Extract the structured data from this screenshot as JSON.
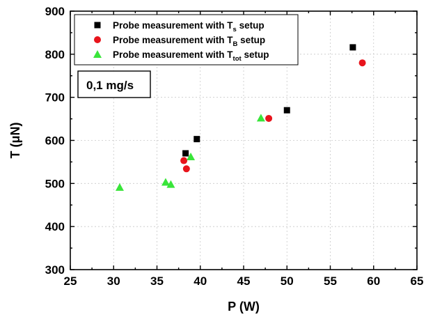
{
  "chart_data": {
    "type": "scatter",
    "title": "",
    "xlabel": "P (W)",
    "ylabel": "T (μN)",
    "xlim": [
      25,
      65
    ],
    "ylim": [
      300,
      900
    ],
    "xticks": [
      "25",
      "30",
      "35",
      "40",
      "45",
      "50",
      "55",
      "60",
      "65"
    ],
    "yticks": [
      "300",
      "400",
      "500",
      "600",
      "700",
      "800",
      "900"
    ],
    "xtick_values": [
      25,
      30,
      35,
      40,
      45,
      50,
      55,
      60,
      65
    ],
    "ytick_values": [
      300,
      400,
      500,
      600,
      700,
      800,
      900
    ],
    "grid": true,
    "legend_position": "top-left",
    "annotation": "0,1 mg/s",
    "series": [
      {
        "legend_main": "Probe measurement  with T",
        "legend_sub": "s",
        "legend_tail": " setup",
        "marker": "square",
        "color": "#000000",
        "points": [
          [
            38.3,
            570
          ],
          [
            39.6,
            603
          ],
          [
            50.0,
            670
          ],
          [
            57.6,
            816
          ]
        ]
      },
      {
        "legend_main": "Probe measurement  with T",
        "legend_sub": "B",
        "legend_tail": " setup",
        "marker": "circle",
        "color": "#e8141c",
        "points": [
          [
            38.1,
            553
          ],
          [
            38.4,
            534
          ],
          [
            47.9,
            651
          ],
          [
            58.7,
            780
          ]
        ]
      },
      {
        "legend_main": "Probe measurement  with T",
        "legend_sub": "tot",
        "legend_tail": " setup",
        "marker": "triangle",
        "color": "#39e53a",
        "points": [
          [
            30.7,
            491
          ],
          [
            36.0,
            503
          ],
          [
            36.6,
            498
          ],
          [
            38.9,
            562
          ],
          [
            47.0,
            652
          ]
        ]
      }
    ]
  }
}
